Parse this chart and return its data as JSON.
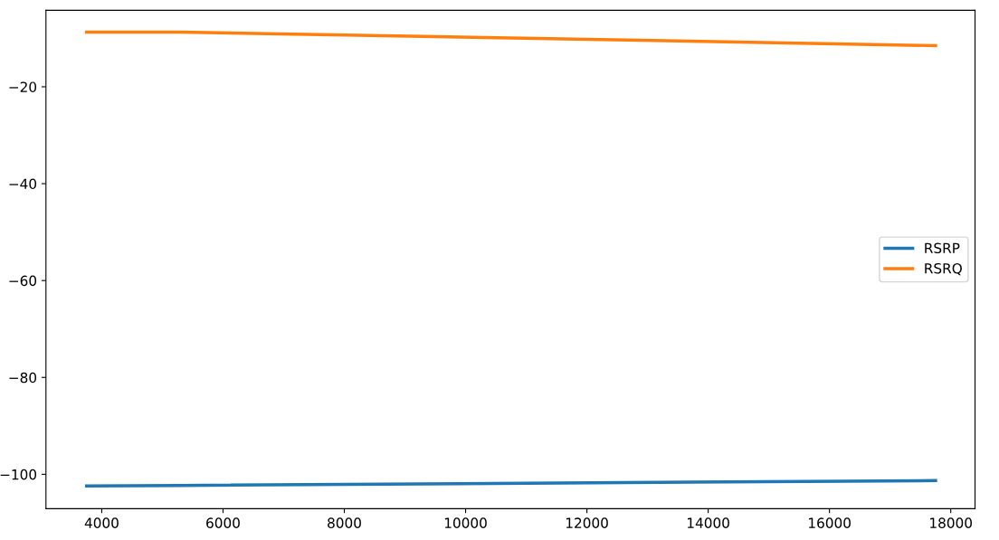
{
  "chart_data": {
    "type": "line",
    "x": [
      3750,
      5300,
      17750
    ],
    "series": [
      {
        "name": "RSRP",
        "color": "#1f77b4",
        "values": [
          -102.4,
          -102.3,
          -101.3
        ]
      },
      {
        "name": "RSRQ",
        "color": "#ff7f0e",
        "values": [
          -8.7,
          -8.7,
          -11.5
        ]
      }
    ],
    "xlim": [
      3080,
      18400
    ],
    "ylim": [
      -107.1,
      -4.2
    ],
    "xticks": [
      4000,
      6000,
      8000,
      10000,
      12000,
      14000,
      16000,
      18000
    ],
    "yticks": [
      {
        "value": -20,
        "label": "−20"
      },
      {
        "value": -40,
        "label": "−40"
      },
      {
        "value": -60,
        "label": "−60"
      },
      {
        "value": -80,
        "label": "−80"
      },
      {
        "value": -100,
        "label": "−100"
      }
    ],
    "legend": "center right",
    "grid": false,
    "marker": "none",
    "line_style": "solid"
  }
}
